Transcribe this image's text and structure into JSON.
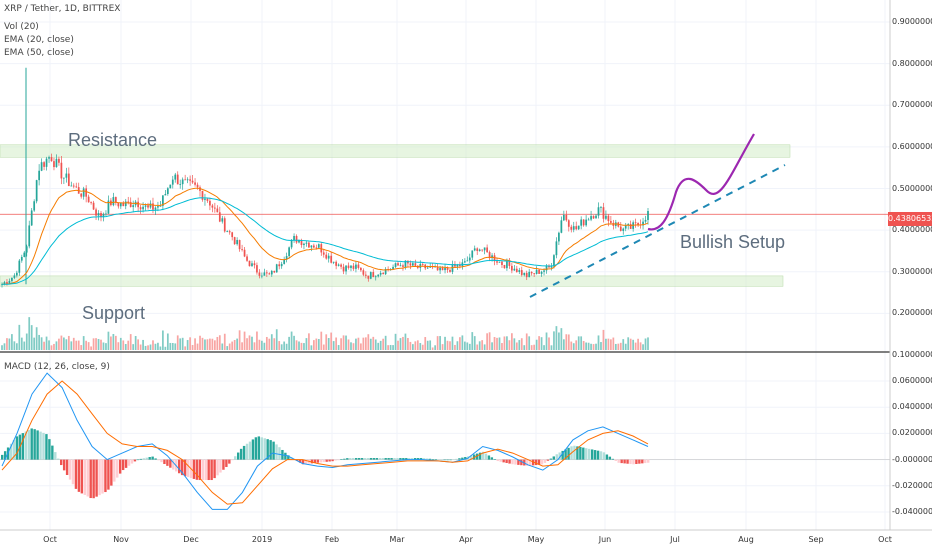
{
  "chart_data": {
    "type": "candlestick",
    "title": "XRP / Tether, 1D, BITTREX",
    "indicators": [
      "Vol (20)",
      "EMA (20, close)",
      "EMA (50, close)"
    ],
    "macd_label": "MACD (12, 26, close, 9)",
    "last_price": "0.43806532",
    "annotations": {
      "resistance": "Resistance",
      "support": "Support",
      "bullish": "Bullish Setup"
    },
    "price_ticks": [
      "0.90000000",
      "0.80000000",
      "0.70000000",
      "0.60000000",
      "0.50000000",
      "0.40000000",
      "0.30000000",
      "0.20000000",
      "0.10000000"
    ],
    "macd_ticks": [
      "0.06000000",
      "0.04000000",
      "0.02000000",
      "-0.00000000",
      "-0.02000000",
      "-0.04000000"
    ],
    "x_ticks": [
      "Oct",
      "Nov",
      "Dec",
      "2019",
      "Feb",
      "Mar",
      "Apr",
      "May",
      "Jun",
      "Jul",
      "Aug",
      "Sep",
      "Oct"
    ],
    "price_ylim": [
      0.1,
      0.9
    ],
    "macd_ylim": [
      -0.04,
      0.06
    ],
    "resistance_zone": [
      0.575,
      0.605
    ],
    "support_zone": [
      0.265,
      0.29
    ],
    "price_path": [
      0.27,
      0.29,
      0.36,
      0.55,
      0.58,
      0.53,
      0.5,
      0.48,
      0.43,
      0.47,
      0.46,
      0.47,
      0.45,
      0.46,
      0.53,
      0.51,
      0.5,
      0.47,
      0.42,
      0.38,
      0.33,
      0.3,
      0.29,
      0.33,
      0.38,
      0.37,
      0.36,
      0.33,
      0.31,
      0.31,
      0.29,
      0.3,
      0.31,
      0.32,
      0.31,
      0.31,
      0.3,
      0.31,
      0.32,
      0.36,
      0.34,
      0.32,
      0.31,
      0.29,
      0.3,
      0.31,
      0.44,
      0.4,
      0.43,
      0.45,
      0.42,
      0.4,
      0.41,
      0.44
    ],
    "macd_line": [
      -0.005,
      0.02,
      0.05,
      0.066,
      0.055,
      0.03,
      0.01,
      0.0,
      0.005,
      0.01,
      0.012,
      0.003,
      -0.01,
      -0.025,
      -0.038,
      -0.038,
      -0.025,
      -0.005,
      0.005,
      0.003,
      -0.003,
      -0.005,
      -0.006,
      -0.004,
      -0.003,
      -0.002,
      -0.001,
      0.0,
      0.0,
      -0.001,
      -0.002,
      0.001,
      0.01,
      0.007,
      0.002,
      -0.004,
      -0.008,
      0.0,
      0.015,
      0.022,
      0.025,
      0.02,
      0.015,
      0.01
    ],
    "signal_line": [
      -0.008,
      0.005,
      0.03,
      0.05,
      0.06,
      0.05,
      0.035,
      0.02,
      0.012,
      0.01,
      0.01,
      0.007,
      0.0,
      -0.012,
      -0.025,
      -0.034,
      -0.033,
      -0.02,
      -0.007,
      0.0,
      0.0,
      -0.003,
      -0.005,
      -0.005,
      -0.004,
      -0.003,
      -0.002,
      -0.001,
      -0.001,
      -0.001,
      -0.002,
      -0.001,
      0.005,
      0.008,
      0.005,
      0.0,
      -0.005,
      -0.004,
      0.006,
      0.015,
      0.02,
      0.022,
      0.018,
      0.012
    ]
  }
}
